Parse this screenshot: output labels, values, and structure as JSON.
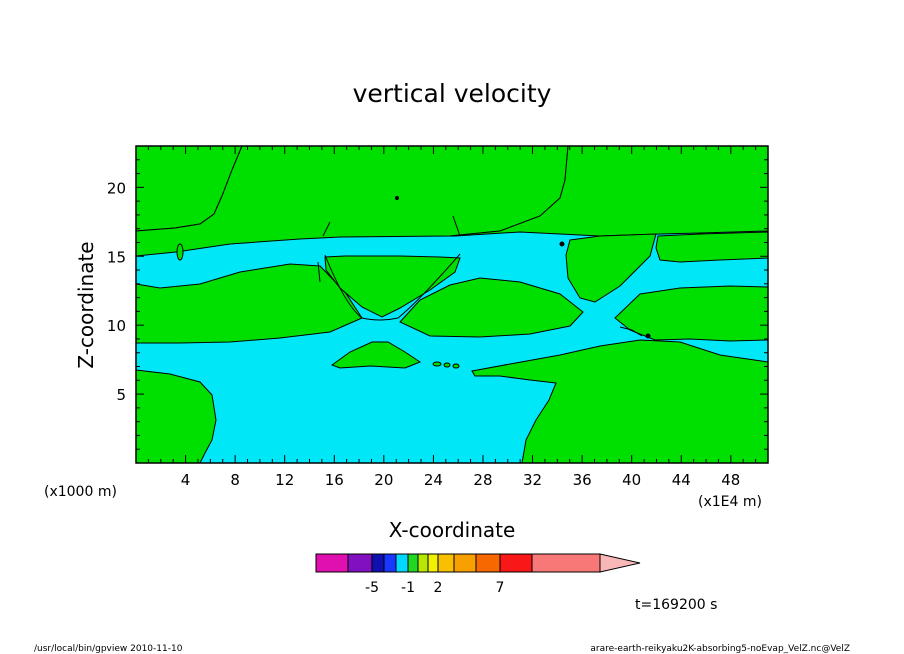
{
  "chart_data": {
    "type": "heatmap",
    "title": "vertical velocity",
    "xlabel": "X-coordinate",
    "ylabel": "Z-coordinate",
    "x_units": "(x1E4 m)",
    "y_units": "(x1000 m)",
    "xlim": [
      0,
      51
    ],
    "ylim": [
      0,
      23
    ],
    "x_ticks": [
      "4",
      "8",
      "12",
      "16",
      "20",
      "24",
      "28",
      "32",
      "36",
      "40",
      "44",
      "48"
    ],
    "x_tick_values": [
      4,
      8,
      12,
      16,
      20,
      24,
      28,
      32,
      36,
      40,
      44,
      48
    ],
    "y_ticks": [
      "5",
      "10",
      "15",
      "20"
    ],
    "y_tick_values": [
      5,
      10,
      15,
      20
    ],
    "background_fill_color": "#00e8f8",
    "positive_fill_color": "#00e000",
    "colorbar": {
      "colors": [
        "#e010b0",
        "#8010c0",
        "#1010b0",
        "#1838ff",
        "#00d8ff",
        "#20d820",
        "#b8e800",
        "#f0f000",
        "#f8c000",
        "#f8a000",
        "#f86800",
        "#f81818",
        "#f87878",
        "#f8b8b8"
      ],
      "labels": [
        "-5",
        "-1",
        "2",
        "7"
      ],
      "label_values": [
        -5,
        -1,
        2,
        7
      ]
    },
    "time_label": "t=169200 s"
  },
  "footer": {
    "left": "/usr/local/bin/gpview   2010-11-10",
    "right": "arare-earth-reikyaku2K-absorbing5-noEvap_VelZ.nc@VelZ"
  }
}
